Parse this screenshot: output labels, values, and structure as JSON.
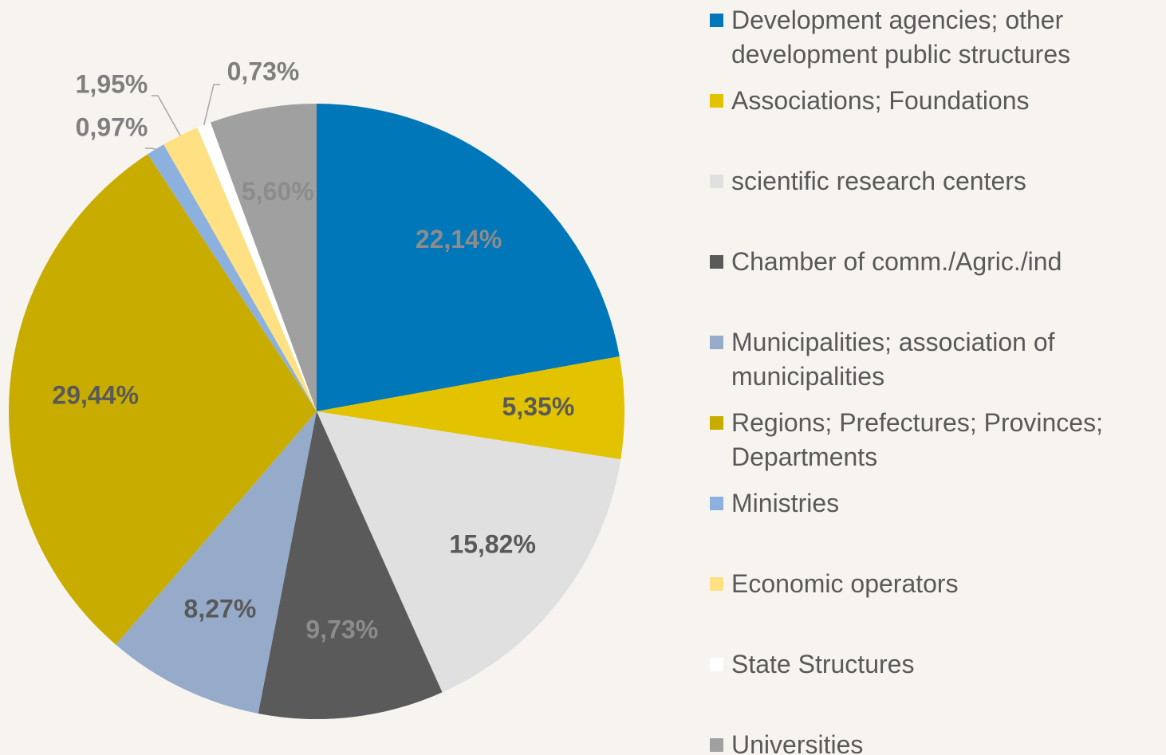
{
  "chart_data": {
    "type": "pie",
    "categories": [
      "Development agencies; other development public structures",
      "Associations; Foundations",
      "scientific research centers",
      "Chamber of comm./Agric./ind",
      "Municipalities; association of municipalities",
      "Regions; Prefectures; Provinces; Departments",
      "Ministries",
      "Economic operators",
      "State Structures",
      "Universities"
    ],
    "values": [
      22.14,
      5.35,
      15.82,
      9.73,
      8.27,
      29.44,
      0.97,
      1.95,
      0.73,
      5.6
    ],
    "value_labels": [
      "22,14%",
      "5,35%",
      "15,82%",
      "9,73%",
      "8,27%",
      "29,44%",
      "0,97%",
      "1,95%",
      "0,73%",
      "5,60%"
    ],
    "colors": [
      "#0077b9",
      "#e3c300",
      "#e0e0e0",
      "#5a5a5a",
      "#95abc9",
      "#c8ad00",
      "#8db1de",
      "#ffe183",
      "#ffffff",
      "#a0a0a0"
    ],
    "legend": "right"
  }
}
